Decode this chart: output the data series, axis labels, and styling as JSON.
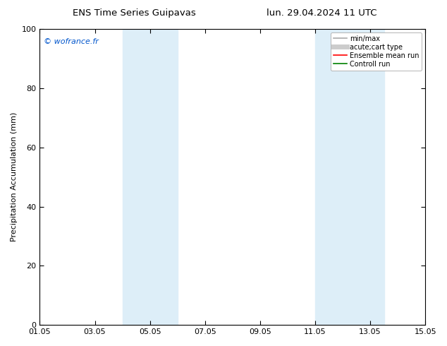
{
  "title_left": "ENS Time Series Guipavas",
  "title_right": "lun. 29.04.2024 11 UTC",
  "ylabel": "Precipitation Accumulation (mm)",
  "ylim": [
    0,
    100
  ],
  "xlim": [
    0,
    14
  ],
  "xtick_positions": [
    0,
    2,
    4,
    6,
    8,
    10,
    12,
    14
  ],
  "xtick_labels": [
    "01.05",
    "03.05",
    "05.05",
    "07.05",
    "09.05",
    "11.05",
    "13.05",
    "15.05"
  ],
  "ytick_positions": [
    0,
    20,
    40,
    60,
    80,
    100
  ],
  "shaded_bands": [
    {
      "xmin": 3.0,
      "xmax": 5.0,
      "color": "#ddeef8"
    },
    {
      "xmin": 10.0,
      "xmax": 12.5,
      "color": "#ddeef8"
    }
  ],
  "watermark_text": "© wofrance.fr",
  "watermark_color": "#0055cc",
  "legend_entries": [
    {
      "label": "min/max",
      "color": "#aaaaaa",
      "lw": 1.2,
      "style": "solid"
    },
    {
      "label": "acute;cart type",
      "color": "#cccccc",
      "lw": 5,
      "style": "solid"
    },
    {
      "label": "Ensemble mean run",
      "color": "#ff0000",
      "lw": 1.2,
      "style": "solid"
    },
    {
      "label": "Controll run",
      "color": "#008000",
      "lw": 1.2,
      "style": "solid"
    }
  ],
  "bg_color": "#ffffff",
  "spine_color": "#000000",
  "grid": false,
  "tick_color": "#000000",
  "title_fontsize": 9.5,
  "label_fontsize": 8,
  "tick_fontsize": 8,
  "watermark_fontsize": 8,
  "legend_fontsize": 7
}
